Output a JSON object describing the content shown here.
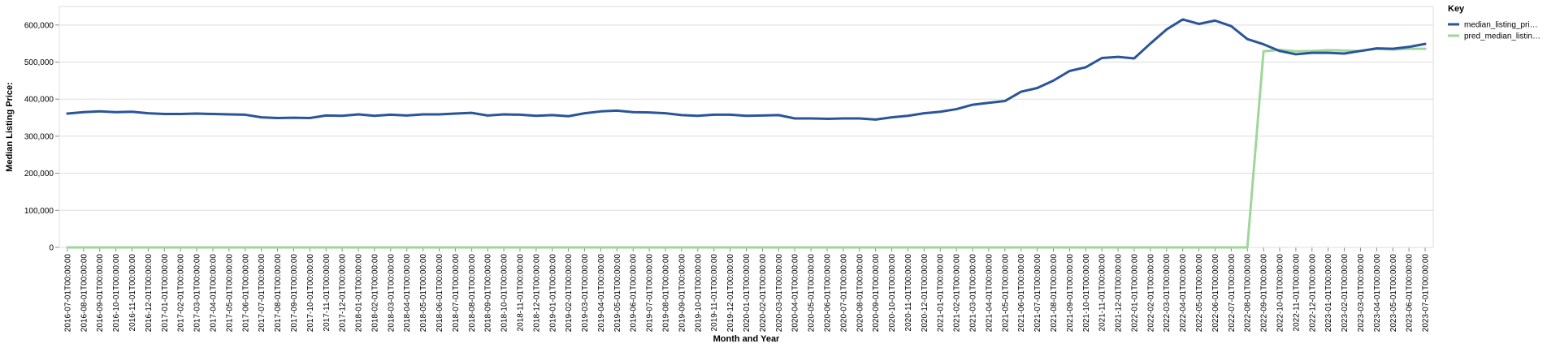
{
  "chart_data": {
    "type": "line",
    "xlabel": "Month and Year",
    "ylabel": "Median Listing Price:",
    "ylim": [
      0,
      650000
    ],
    "yticks": [
      0,
      100000,
      200000,
      300000,
      400000,
      500000,
      600000
    ],
    "ytick_labels": [
      "0",
      "100,000",
      "200,000",
      "300,000",
      "400,000",
      "500,000",
      "600,000"
    ],
    "grid": true,
    "legend": {
      "title": "Key",
      "placement": "top-right"
    },
    "x": [
      "2016-07-01T00:00:00",
      "2016-08-01T00:00:00",
      "2016-09-01T00:00:00",
      "2016-10-01T00:00:00",
      "2016-11-01T00:00:00",
      "2016-12-01T00:00:00",
      "2017-01-01T00:00:00",
      "2017-02-01T00:00:00",
      "2017-03-01T00:00:00",
      "2017-04-01T00:00:00",
      "2017-05-01T00:00:00",
      "2017-06-01T00:00:00",
      "2017-07-01T00:00:00",
      "2017-08-01T00:00:00",
      "2017-09-01T00:00:00",
      "2017-10-01T00:00:00",
      "2017-11-01T00:00:00",
      "2017-12-01T00:00:00",
      "2018-01-01T00:00:00",
      "2018-02-01T00:00:00",
      "2018-03-01T00:00:00",
      "2018-04-01T00:00:00",
      "2018-05-01T00:00:00",
      "2018-06-01T00:00:00",
      "2018-07-01T00:00:00",
      "2018-08-01T00:00:00",
      "2018-09-01T00:00:00",
      "2018-10-01T00:00:00",
      "2018-11-01T00:00:00",
      "2018-12-01T00:00:00",
      "2019-01-01T00:00:00",
      "2019-02-01T00:00:00",
      "2019-03-01T00:00:00",
      "2019-04-01T00:00:00",
      "2019-05-01T00:00:00",
      "2019-06-01T00:00:00",
      "2019-07-01T00:00:00",
      "2019-08-01T00:00:00",
      "2019-09-01T00:00:00",
      "2019-10-01T00:00:00",
      "2019-11-01T00:00:00",
      "2019-12-01T00:00:00",
      "2020-01-01T00:00:00",
      "2020-02-01T00:00:00",
      "2020-03-01T00:00:00",
      "2020-04-01T00:00:00",
      "2020-05-01T00:00:00",
      "2020-06-01T00:00:00",
      "2020-07-01T00:00:00",
      "2020-08-01T00:00:00",
      "2020-09-01T00:00:00",
      "2020-10-01T00:00:00",
      "2020-11-01T00:00:00",
      "2020-12-01T00:00:00",
      "2021-01-01T00:00:00",
      "2021-02-01T00:00:00",
      "2021-03-01T00:00:00",
      "2021-04-01T00:00:00",
      "2021-05-01T00:00:00",
      "2021-06-01T00:00:00",
      "2021-07-01T00:00:00",
      "2021-08-01T00:00:00",
      "2021-09-01T00:00:00",
      "2021-10-01T00:00:00",
      "2021-11-01T00:00:00",
      "2021-12-01T00:00:00",
      "2022-01-01T00:00:00",
      "2022-02-01T00:00:00",
      "2022-03-01T00:00:00",
      "2022-04-01T00:00:00",
      "2022-05-01T00:00:00",
      "2022-06-01T00:00:00",
      "2022-07-01T00:00:00",
      "2022-08-01T00:00:00",
      "2022-09-01T00:00:00",
      "2022-10-01T00:00:00",
      "2022-11-01T00:00:00",
      "2022-12-01T00:00:00",
      "2023-01-01T00:00:00",
      "2023-02-01T00:00:00",
      "2023-03-01T00:00:00",
      "2023-04-01T00:00:00",
      "2023-05-01T00:00:00",
      "2023-06-01T00:00:00",
      "2023-07-01T00:00:00"
    ],
    "series": [
      {
        "name": "median_listing_pri…",
        "color": "#2a5599",
        "values": [
          361000,
          365000,
          367000,
          365000,
          366000,
          362000,
          360000,
          360000,
          361000,
          360000,
          359000,
          358000,
          351000,
          349000,
          350000,
          349000,
          356000,
          355000,
          359000,
          355000,
          358000,
          356000,
          359000,
          359000,
          361000,
          363000,
          356000,
          359000,
          358000,
          355000,
          357000,
          354000,
          362000,
          367000,
          369000,
          365000,
          364000,
          362000,
          357000,
          355000,
          358000,
          358000,
          355000,
          356000,
          357000,
          348000,
          348000,
          347000,
          348000,
          348000,
          345000,
          351000,
          355000,
          362000,
          366000,
          373000,
          385000,
          390000,
          395000,
          420000,
          430000,
          450000,
          476000,
          486000,
          511000,
          514000,
          510000,
          550000,
          588000,
          615000,
          603000,
          612000,
          597000,
          562000,
          548000,
          530000,
          521000,
          525000,
          525000,
          523000,
          530000,
          537000,
          536000,
          541000,
          549000
        ]
      },
      {
        "name": "pred_median_listin…",
        "color": "#9fd69a",
        "values": [
          0,
          0,
          0,
          0,
          0,
          0,
          0,
          0,
          0,
          0,
          0,
          0,
          0,
          0,
          0,
          0,
          0,
          0,
          0,
          0,
          0,
          0,
          0,
          0,
          0,
          0,
          0,
          0,
          0,
          0,
          0,
          0,
          0,
          0,
          0,
          0,
          0,
          0,
          0,
          0,
          0,
          0,
          0,
          0,
          0,
          0,
          0,
          0,
          0,
          0,
          0,
          0,
          0,
          0,
          0,
          0,
          0,
          0,
          0,
          0,
          0,
          0,
          0,
          0,
          0,
          0,
          0,
          0,
          0,
          0,
          0,
          0,
          0,
          0,
          529000,
          533000,
          529000,
          530000,
          532000,
          531000,
          530000,
          536000,
          534000,
          536000,
          536000
        ]
      }
    ]
  }
}
